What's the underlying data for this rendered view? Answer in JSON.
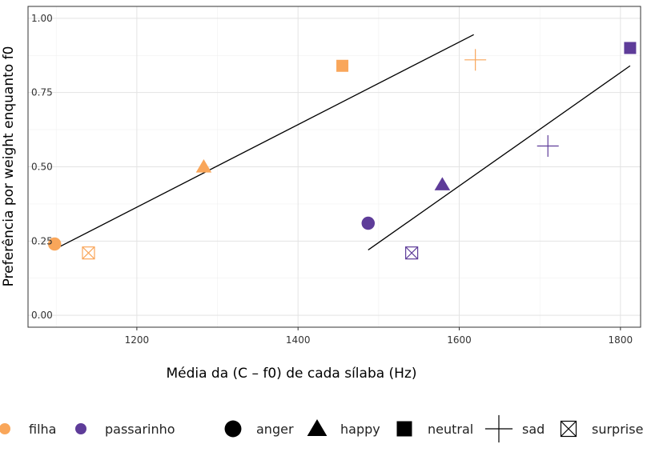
{
  "chart_data": {
    "type": "scatter",
    "title": "",
    "xlabel": "Média da (C – f0) de cada sílaba (Hz)",
    "ylabel": "Preferência por weight enquanto f0",
    "xlim": [
      1065,
      1825
    ],
    "ylim": [
      -0.04,
      1.04
    ],
    "x_ticks": [
      1200,
      1400,
      1600,
      1800
    ],
    "x_tick_labels": [
      "1200",
      "1400",
      "1600",
      "1800"
    ],
    "y_ticks": [
      0.0,
      0.25,
      0.5,
      0.75,
      1.0
    ],
    "y_tick_labels": [
      "0.00",
      "0.25",
      "0.50",
      "0.75",
      "1.00"
    ],
    "grid": true,
    "legend_position": "bottom",
    "series": [
      {
        "name": "filha",
        "color": "#F9A65A",
        "points": [
          {
            "x": 1098,
            "y": 0.24,
            "shape": "anger"
          },
          {
            "x": 1283,
            "y": 0.5,
            "shape": "happy"
          },
          {
            "x": 1455,
            "y": 0.84,
            "shape": "neutral"
          },
          {
            "x": 1620,
            "y": 0.86,
            "shape": "sad"
          },
          {
            "x": 1140,
            "y": 0.21,
            "shape": "surprise"
          }
        ],
        "fit": {
          "x": [
            1100,
            1618
          ],
          "y": [
            0.225,
            0.945
          ]
        }
      },
      {
        "name": "passarinho",
        "color": "#5E3C99",
        "points": [
          {
            "x": 1487,
            "y": 0.31,
            "shape": "anger"
          },
          {
            "x": 1579,
            "y": 0.44,
            "shape": "happy"
          },
          {
            "x": 1812,
            "y": 0.9,
            "shape": "neutral"
          },
          {
            "x": 1710,
            "y": 0.57,
            "shape": "sad"
          },
          {
            "x": 1541,
            "y": 0.21,
            "shape": "surprise"
          }
        ],
        "fit": {
          "x": [
            1487,
            1812
          ],
          "y": [
            0.22,
            0.84
          ]
        }
      }
    ],
    "legend": {
      "color_entries": [
        {
          "label": "filha",
          "color": "#F9A65A"
        },
        {
          "label": "passarinho",
          "color": "#5E3C99"
        }
      ],
      "shape_entries": [
        {
          "label": "anger",
          "shape": "anger"
        },
        {
          "label": "happy",
          "shape": "happy"
        },
        {
          "label": "neutral",
          "shape": "neutral"
        },
        {
          "label": "sad",
          "shape": "sad"
        },
        {
          "label": "surprise",
          "shape": "surprise"
        }
      ]
    }
  }
}
